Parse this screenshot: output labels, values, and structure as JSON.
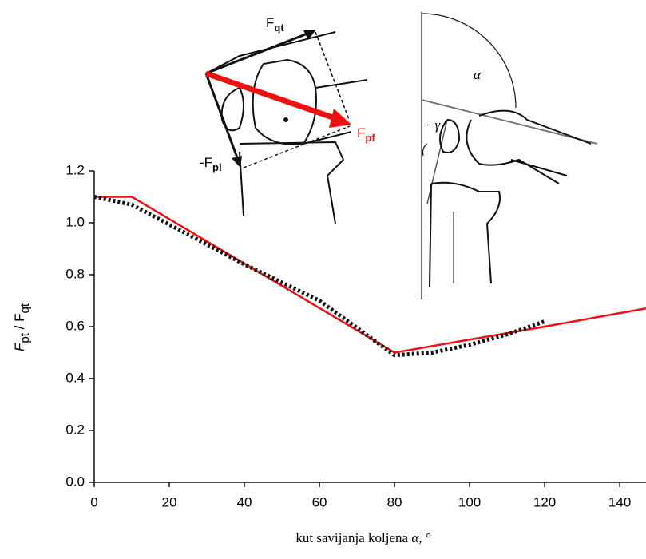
{
  "chart_data": {
    "type": "line",
    "ylabel_parts": [
      "F",
      "pt",
      " / F",
      "qt"
    ],
    "xlabel": "kut savijanja koljena",
    "xlabel_symbol": "α, °",
    "xlim": [
      0,
      147
    ],
    "xticks": [
      0,
      20,
      40,
      60,
      80,
      100,
      120,
      140
    ],
    "ylim": [
      0,
      1.2
    ],
    "yticks": [
      {
        "value": 0,
        "label": "0.0"
      },
      0.2,
      0.4,
      0.6,
      0.8,
      {
        "value": 1,
        "label": "1.0"
      },
      1.2
    ],
    "series": [
      {
        "color": "#ee1111",
        "style": "solid",
        "x": [
          0,
          10,
          80,
          100,
          120,
          147
        ],
        "values": [
          1.1,
          1.1,
          0.5,
          0.55,
          0.6,
          0.67
        ]
      },
      {
        "color": "#111111",
        "style": "dotted",
        "x": [
          0,
          10,
          40,
          60,
          80,
          90,
          100,
          110,
          120
        ],
        "values": [
          1.1,
          1.07,
          0.84,
          0.7,
          0.49,
          0.5,
          0.53,
          0.57,
          0.62
        ]
      }
    ],
    "annotations": [
      {
        "main": "F",
        "sub": "qt"
      },
      {
        "main": "F",
        "sub": "pf"
      },
      {
        "main": "-F",
        "sub": "pl"
      },
      {
        "main": "α"
      },
      {
        "main": "−γ"
      }
    ]
  }
}
